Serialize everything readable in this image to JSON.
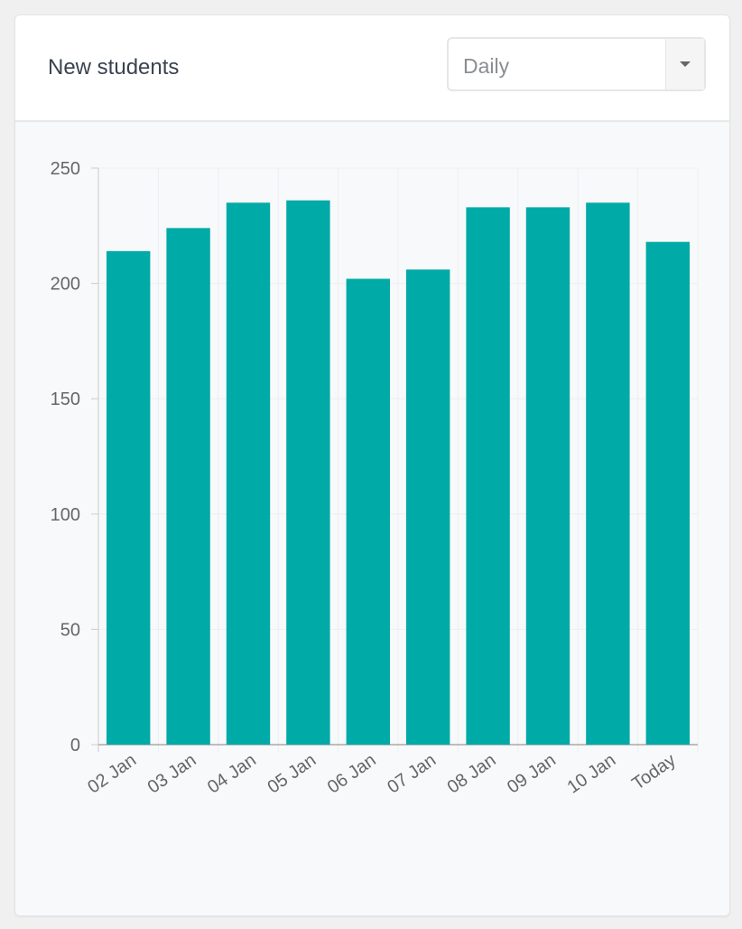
{
  "header": {
    "title": "New students",
    "period_select": "Daily"
  },
  "colors": {
    "bar": "#00aaa6"
  },
  "chart_data": {
    "type": "bar",
    "title": "New students",
    "categories": [
      "02 Jan",
      "03 Jan",
      "04 Jan",
      "05 Jan",
      "06 Jan",
      "07 Jan",
      "08 Jan",
      "09 Jan",
      "10 Jan",
      "Today"
    ],
    "values": [
      214,
      224,
      235,
      236,
      202,
      206,
      233,
      233,
      235,
      218
    ],
    "ylim": [
      0,
      250
    ],
    "yticks": [
      0,
      50,
      100,
      150,
      200,
      250
    ],
    "xlabel": "",
    "ylabel": "",
    "grid": true
  }
}
